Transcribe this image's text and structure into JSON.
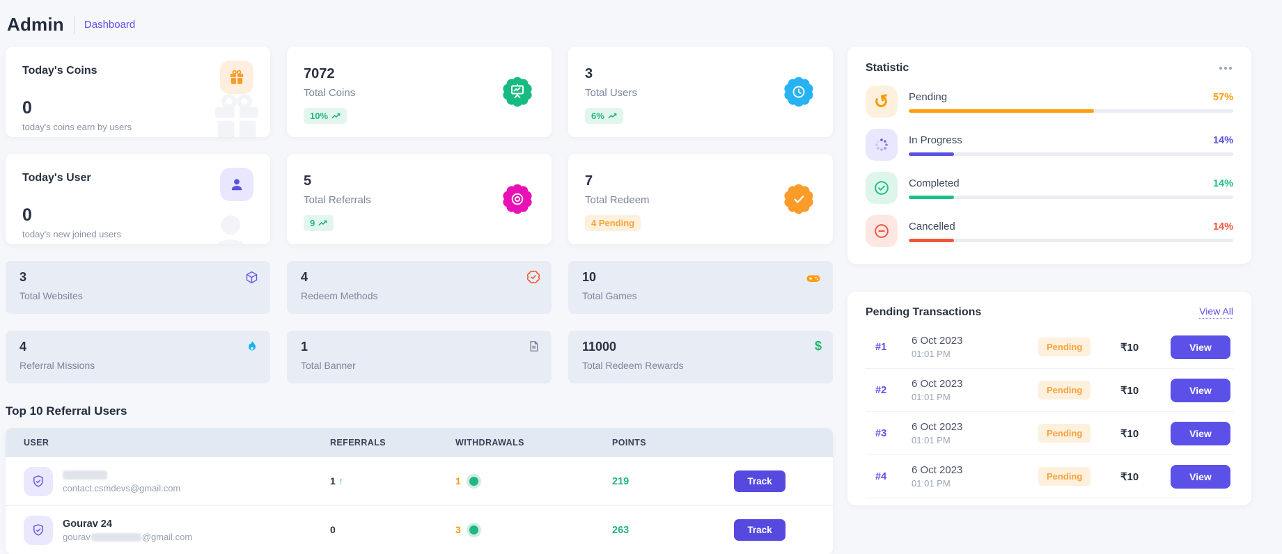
{
  "header": {
    "title": "Admin",
    "breadcrumb": "Dashboard"
  },
  "cards": {
    "todays_coins": {
      "title": "Today's Coins",
      "value": "0",
      "subtitle": "today's coins earn by users",
      "icon": "gift-icon"
    },
    "todays_user": {
      "title": "Today's User",
      "value": "0",
      "subtitle": "today's new joined users",
      "icon": "user-icon"
    },
    "total_coins": {
      "value": "7072",
      "label": "Total Coins",
      "badge": "10%",
      "icon": "presentation-chart-icon",
      "seal_color": "#17ba80"
    },
    "total_users": {
      "value": "3",
      "label": "Total Users",
      "badge": "6%",
      "icon": "clock-icon",
      "seal_color": "#27b2f1"
    },
    "total_referrals": {
      "value": "5",
      "label": "Total Referrals",
      "badge": "9",
      "icon": "target-icon",
      "seal_color": "#e811b6"
    },
    "total_redeem": {
      "value": "7",
      "label": "Total Redeem",
      "badge": "4 Pending",
      "icon": "check-badge-icon",
      "seal_color": "#fb9b28"
    }
  },
  "mini_cards": [
    {
      "value": "3",
      "label": "Total Websites",
      "icon": "cube-icon",
      "icon_color": "#6157e6"
    },
    {
      "value": "4",
      "label": "Redeem Methods",
      "icon": "badge-check-icon",
      "icon_color": "#f4502c"
    },
    {
      "value": "10",
      "label": "Total Games",
      "icon": "gamepad-icon",
      "icon_color": "#ff9d0e"
    },
    {
      "value": "4",
      "label": "Referral Missions",
      "icon": "flame-icon",
      "icon_color": "#18b2ee"
    },
    {
      "value": "1",
      "label": "Total Banner",
      "icon": "document-icon",
      "icon_color": "#6e7890"
    },
    {
      "value": "11000",
      "label": "Total Redeem Rewards",
      "icon": "dollar-icon",
      "icon_color": "#22b96e"
    }
  ],
  "statistic": {
    "title": "Statistic",
    "rows": [
      {
        "label": "Pending",
        "percent": 57,
        "percent_label": "57%",
        "color": "#ff9d0e",
        "icon": "history-icon"
      },
      {
        "label": "In Progress",
        "percent": 14,
        "percent_label": "14%",
        "color": "#5b51e0",
        "icon": "spinner-icon"
      },
      {
        "label": "Completed",
        "percent": 14,
        "percent_label": "14%",
        "color": "#1fbf86",
        "icon": "check-circle-icon"
      },
      {
        "label": "Cancelled",
        "percent": 14,
        "percent_label": "14%",
        "color": "#f1553e",
        "icon": "minus-circle-icon"
      }
    ]
  },
  "transactions": {
    "title": "Pending Transactions",
    "view_all": "View All",
    "rows": [
      {
        "id": "#1",
        "date": "6 Oct 2023",
        "time": "01:01 PM",
        "status": "Pending",
        "amount": "₹10",
        "action": "View"
      },
      {
        "id": "#2",
        "date": "6 Oct 2023",
        "time": "01:01 PM",
        "status": "Pending",
        "amount": "₹10",
        "action": "View"
      },
      {
        "id": "#3",
        "date": "6 Oct 2023",
        "time": "01:01 PM",
        "status": "Pending",
        "amount": "₹10",
        "action": "View"
      },
      {
        "id": "#4",
        "date": "6 Oct 2023",
        "time": "01:01 PM",
        "status": "Pending",
        "amount": "₹10",
        "action": "View"
      }
    ]
  },
  "referrals_table": {
    "heading": "Top 10 Referral Users",
    "columns": [
      "USER",
      "REFERRALS",
      "WITHDRAWALS",
      "POINTS"
    ],
    "rows": [
      {
        "name": "",
        "name_redacted": true,
        "email": "contact.csmdevs@gmail.com",
        "referrals": "1",
        "referrals_trend": "up",
        "withdrawals": "1",
        "points": "219",
        "action": "Track"
      },
      {
        "name": "Gourav 24",
        "email_prefix": "gourav",
        "email_redacted": true,
        "email_suffix": "@gmail.com",
        "referrals": "0",
        "withdrawals": "3",
        "points": "263",
        "action": "Track"
      }
    ]
  },
  "colors": {
    "accent_purple": "#5b51e8",
    "green": "#23b583",
    "orange": "#ff9d0e",
    "red": "#f1553e",
    "cyan": "#18b2ee",
    "magenta": "#e811b6",
    "page_bg": "#f5f7fa",
    "mini_card_bg": "#e8ecf4",
    "table_header_bg": "#e3e9f2"
  }
}
